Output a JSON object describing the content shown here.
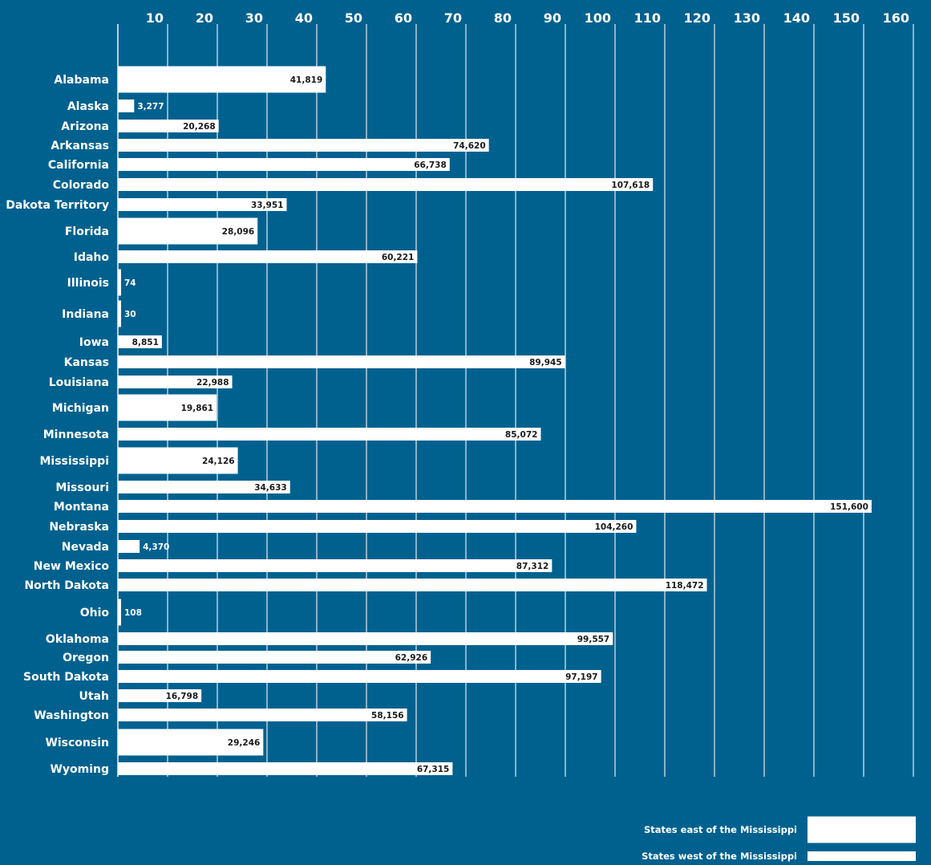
{
  "chart_data": {
    "type": "bar",
    "orientation": "horizontal",
    "title": "",
    "xlabel": "",
    "ylabel": "",
    "xlim": [
      0,
      160
    ],
    "x_tick_labels": [
      "10",
      "20",
      "30",
      "40",
      "50",
      "60",
      "70",
      "80",
      "90",
      "100",
      "110",
      "120",
      "130",
      "140",
      "150",
      "160"
    ],
    "x_axis_position": "top",
    "grid": true,
    "bar_color": "#ffffff",
    "background_color": "#00618f",
    "categories": [
      "Alabama",
      "Alaska",
      "Arizona",
      "Arkansas",
      "California",
      "Colorado",
      "Dakota Territory",
      "Florida",
      "Idaho",
      "Illinois",
      "Indiana",
      "Iowa",
      "Kansas",
      "Louisiana",
      "Michigan",
      "Minnesota",
      "Mississippi",
      "Missouri",
      "Montana",
      "Nebraska",
      "Nevada",
      "New Mexico",
      "North Dakota",
      "Ohio",
      "Oklahoma",
      "Oregon",
      "South Dakota",
      "Utah",
      "Washington",
      "Wisconsin",
      "Wyoming"
    ],
    "values": [
      41819,
      3277,
      20268,
      74620,
      66738,
      107618,
      33951,
      28096,
      60221,
      74,
      30,
      8851,
      89945,
      22988,
      19861,
      85072,
      24126,
      34633,
      151600,
      104260,
      4370,
      87312,
      118472,
      108,
      99557,
      62926,
      97197,
      16798,
      58156,
      29246,
      67315
    ],
    "value_labels": [
      "41,819",
      "3,277",
      "20,268",
      "74,620",
      "66,738",
      "107,618",
      "33,951",
      "28,096",
      "60,221",
      "74",
      "30",
      "8,851",
      "89,945",
      "22,988",
      "19,861",
      "85,072",
      "24,126",
      "34,633",
      "151,600",
      "104,260",
      "4,370",
      "87,312",
      "118,472",
      "108",
      "99,557",
      "62,926",
      "97,197",
      "16,798",
      "58,156",
      "29,246",
      "67,315"
    ],
    "region": [
      "east",
      "west",
      "west",
      "west",
      "west",
      "west",
      "west",
      "east",
      "west",
      "east",
      "east",
      "west",
      "west",
      "west",
      "east",
      "west",
      "east",
      "west",
      "west",
      "west",
      "west",
      "west",
      "west",
      "east",
      "west",
      "west",
      "west",
      "west",
      "west",
      "east",
      "west"
    ],
    "legend": {
      "position": "bottom-right",
      "entries": [
        {
          "key": "east",
          "label": "States east of the Mississippi"
        },
        {
          "key": "west",
          "label": "States west of the Mississippi"
        }
      ]
    }
  }
}
